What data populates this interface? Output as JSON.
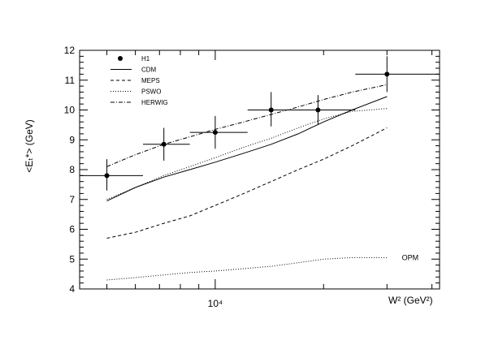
{
  "chart_data": {
    "type": "line",
    "title": "",
    "xlabel": "W²  (GeV²)",
    "ylabel": "<Eₜ*> (GeV)",
    "x_scale": "log",
    "xlim": [
      4200,
      42000
    ],
    "ylim": [
      4,
      12
    ],
    "y_ticks": [
      4,
      5,
      6,
      7,
      8,
      9,
      10,
      11,
      12
    ],
    "y_tick_labels": [
      "4",
      "5",
      "6",
      "7",
      "8",
      "9",
      "10",
      "11",
      "12"
    ],
    "x_ticks": [
      10000
    ],
    "x_tick_labels": [
      "10⁴"
    ],
    "grid": false,
    "legend_position": "top-left",
    "legend": [
      {
        "label": "H1",
        "style": "marker"
      },
      {
        "label": "CDM",
        "style": "solid"
      },
      {
        "label": "MEPS",
        "style": "dashed"
      },
      {
        "label": "PSWO",
        "style": "dotted"
      },
      {
        "label": "HERWIG",
        "style": "dashdot"
      }
    ],
    "h1_points": [
      {
        "x": 5000,
        "y": 7.8,
        "xerr": [
          4200,
          6300
        ],
        "yerr": [
          7.3,
          8.35
        ]
      },
      {
        "x": 7200,
        "y": 8.85,
        "xerr": [
          6300,
          8500
        ],
        "yerr": [
          8.3,
          9.4
        ]
      },
      {
        "x": 10000,
        "y": 9.25,
        "xerr": [
          8500,
          12300
        ],
        "yerr": [
          8.7,
          9.8
        ]
      },
      {
        "x": 14300,
        "y": 10.0,
        "xerr": [
          12300,
          17000
        ],
        "yerr": [
          9.45,
          10.6
        ]
      },
      {
        "x": 19300,
        "y": 10.0,
        "xerr": [
          17000,
          24500
        ],
        "yerr": [
          9.5,
          10.5
        ]
      },
      {
        "x": 30000,
        "y": 11.2,
        "xerr": [
          24500,
          42000
        ],
        "yerr": [
          10.6,
          11.8
        ]
      }
    ],
    "series": [
      {
        "name": "CDM",
        "style": "solid",
        "x": [
          5000,
          6000,
          7200,
          8500,
          10000,
          12000,
          14300,
          17000,
          20000,
          24000,
          30000
        ],
        "y": [
          6.95,
          7.4,
          7.75,
          8.0,
          8.25,
          8.55,
          8.85,
          9.2,
          9.6,
          10.0,
          10.45
        ]
      },
      {
        "name": "MEPS",
        "style": "dashed",
        "x": [
          5000,
          6000,
          7200,
          8500,
          10000,
          12000,
          14300,
          17000,
          20000,
          24000,
          30000
        ],
        "y": [
          5.7,
          5.9,
          6.2,
          6.45,
          6.8,
          7.2,
          7.6,
          8.0,
          8.35,
          8.8,
          9.4
        ]
      },
      {
        "name": "PSWO",
        "style": "dotted",
        "x": [
          5000,
          6000,
          7200,
          8500,
          10000,
          12000,
          14300,
          17000,
          20000,
          24000,
          30000
        ],
        "y": [
          7.0,
          7.4,
          7.8,
          8.1,
          8.4,
          8.75,
          9.05,
          9.4,
          9.7,
          9.95,
          10.05
        ]
      },
      {
        "name": "HERWIG",
        "style": "dashdot",
        "x": [
          5000,
          6000,
          7200,
          8500,
          10000,
          12000,
          14300,
          17000,
          20000,
          24000,
          30000
        ],
        "y": [
          8.1,
          8.5,
          8.85,
          9.1,
          9.35,
          9.6,
          9.85,
          10.1,
          10.35,
          10.6,
          10.85
        ]
      },
      {
        "name": "OPM",
        "style": "dotted",
        "x": [
          5000,
          6000,
          7200,
          8500,
          10000,
          12000,
          14300,
          17000,
          20000,
          24000,
          30000
        ],
        "y": [
          4.3,
          4.38,
          4.47,
          4.55,
          4.6,
          4.68,
          4.76,
          4.88,
          5.0,
          5.05,
          5.05
        ]
      }
    ],
    "annotations": [
      {
        "text": "OPM",
        "x": 33000,
        "y": 5.05
      }
    ]
  }
}
